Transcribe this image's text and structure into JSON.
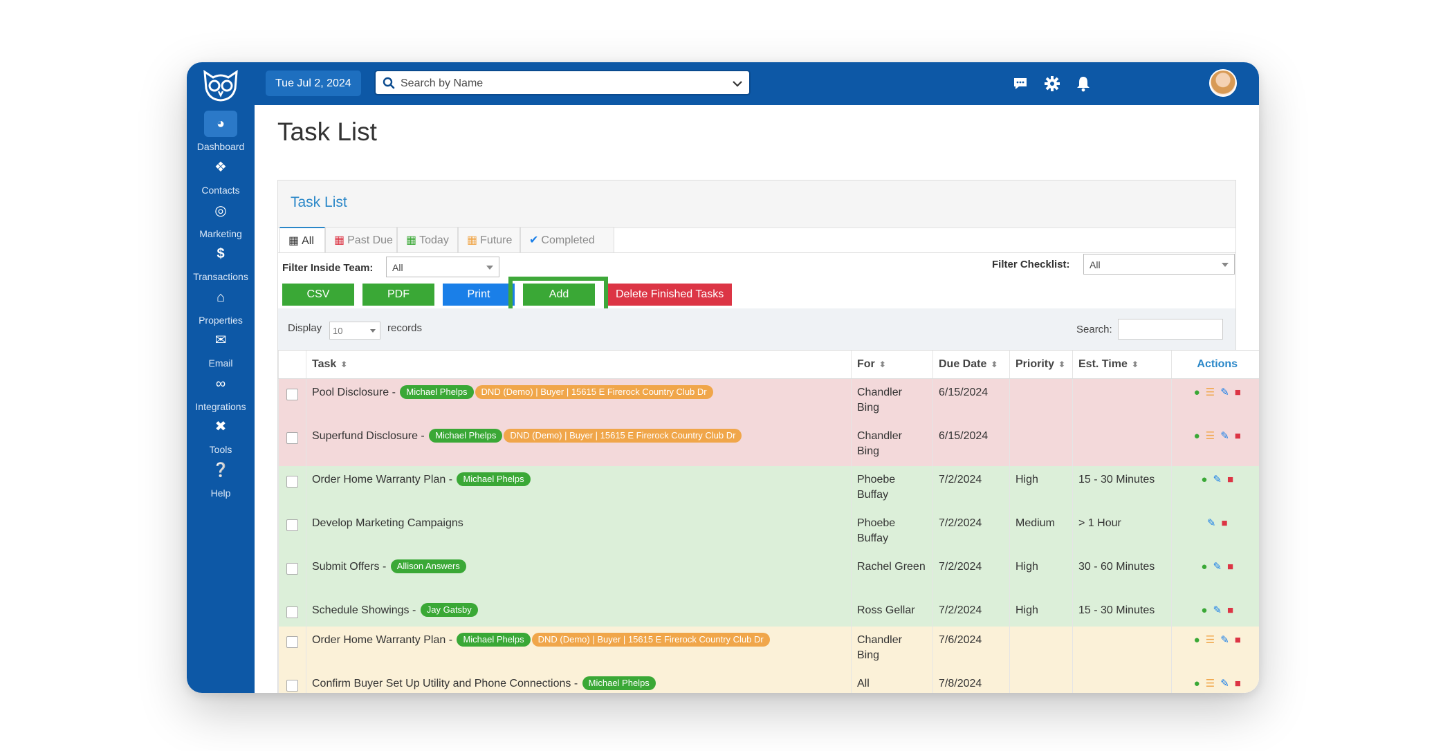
{
  "topbar": {
    "date": "Tue Jul 2, 2024",
    "search_placeholder": "Search by Name"
  },
  "sidebar": {
    "items": [
      {
        "label": "Dashboard",
        "icon": "dashboard-icon"
      },
      {
        "label": "Contacts",
        "icon": "users-icon"
      },
      {
        "label": "Marketing",
        "icon": "target-icon"
      },
      {
        "label": "Transactions",
        "icon": "dollar-icon"
      },
      {
        "label": "Properties",
        "icon": "home-icon"
      },
      {
        "label": "Email",
        "icon": "envelope-icon"
      },
      {
        "label": "Integrations",
        "icon": "link-icon"
      },
      {
        "label": "Tools",
        "icon": "tools-icon"
      },
      {
        "label": "Help",
        "icon": "help-icon"
      }
    ]
  },
  "page": {
    "title": "Task List",
    "panel_title": "Task List"
  },
  "tabs": [
    {
      "label": "All",
      "active": true
    },
    {
      "label": "Past Due"
    },
    {
      "label": "Today"
    },
    {
      "label": "Future"
    },
    {
      "label": "Completed"
    }
  ],
  "filters": {
    "team_label": "Filter Inside Team:",
    "team_value": "All",
    "checklist_label": "Filter Checklist:",
    "checklist_value": "All"
  },
  "buttons": {
    "csv": "CSV",
    "pdf": "PDF",
    "print": "Print",
    "add": "Add",
    "delete_finished": "Delete Finished Tasks"
  },
  "datatable": {
    "display_label": "Display",
    "display_value": "10",
    "records_label": "records",
    "search_label": "Search:"
  },
  "columns": {
    "task": "Task",
    "for": "For",
    "due": "Due Date",
    "priority": "Priority",
    "est": "Est. Time",
    "actions": "Actions"
  },
  "rows": [
    {
      "task": "Pool Disclosure -",
      "badges": [
        "Michael Phelps",
        "DND (Demo) | Buyer | 15615 E Firerock Country Club Dr"
      ],
      "for": "Chandler Bing",
      "due": "6/15/2024",
      "priority": "",
      "est": "",
      "color": "red"
    },
    {
      "task": "Superfund Disclosure -",
      "badges": [
        "Michael Phelps",
        "DND (Demo) | Buyer | 15615 E Firerock Country Club Dr"
      ],
      "for": "Chandler Bing",
      "due": "6/15/2024",
      "priority": "",
      "est": "",
      "color": "red"
    },
    {
      "task": "Order Home Warranty Plan -",
      "badges": [
        "Michael Phelps"
      ],
      "for": "Phoebe Buffay",
      "due": "7/2/2024",
      "priority": "High",
      "est": "15 - 30 Minutes",
      "color": "green"
    },
    {
      "task": "Develop Marketing Campaigns",
      "badges": [],
      "for": "Phoebe Buffay",
      "due": "7/2/2024",
      "priority": "Medium",
      "est": "> 1 Hour",
      "color": "green"
    },
    {
      "task": "Submit Offers -",
      "badges": [
        "Allison Answers"
      ],
      "for": "Rachel Green",
      "due": "7/2/2024",
      "priority": "High",
      "est": "30 - 60 Minutes",
      "color": "green"
    },
    {
      "task": "Schedule Showings -",
      "badges": [
        "Jay Gatsby"
      ],
      "for": "Ross Gellar",
      "due": "7/2/2024",
      "priority": "High",
      "est": "15 - 30 Minutes",
      "color": "green"
    },
    {
      "task": "Order Home Warranty Plan -",
      "badges": [
        "Michael Phelps",
        "DND (Demo) | Buyer | 15615 E Firerock Country Club Dr"
      ],
      "for": "Chandler Bing",
      "due": "7/6/2024",
      "priority": "",
      "est": "",
      "color": "yellow"
    },
    {
      "task": "Confirm Buyer Set Up Utility and Phone Connections -",
      "badges": [
        "Michael Phelps"
      ],
      "for": "All",
      "due": "7/8/2024",
      "priority": "",
      "est": "",
      "color": "yellow"
    }
  ],
  "colors": {
    "brand": "#0d58a6",
    "green": "#3aa836",
    "orange": "#f0a64a",
    "blue": "#1a7fe8",
    "red": "#dc3545"
  }
}
